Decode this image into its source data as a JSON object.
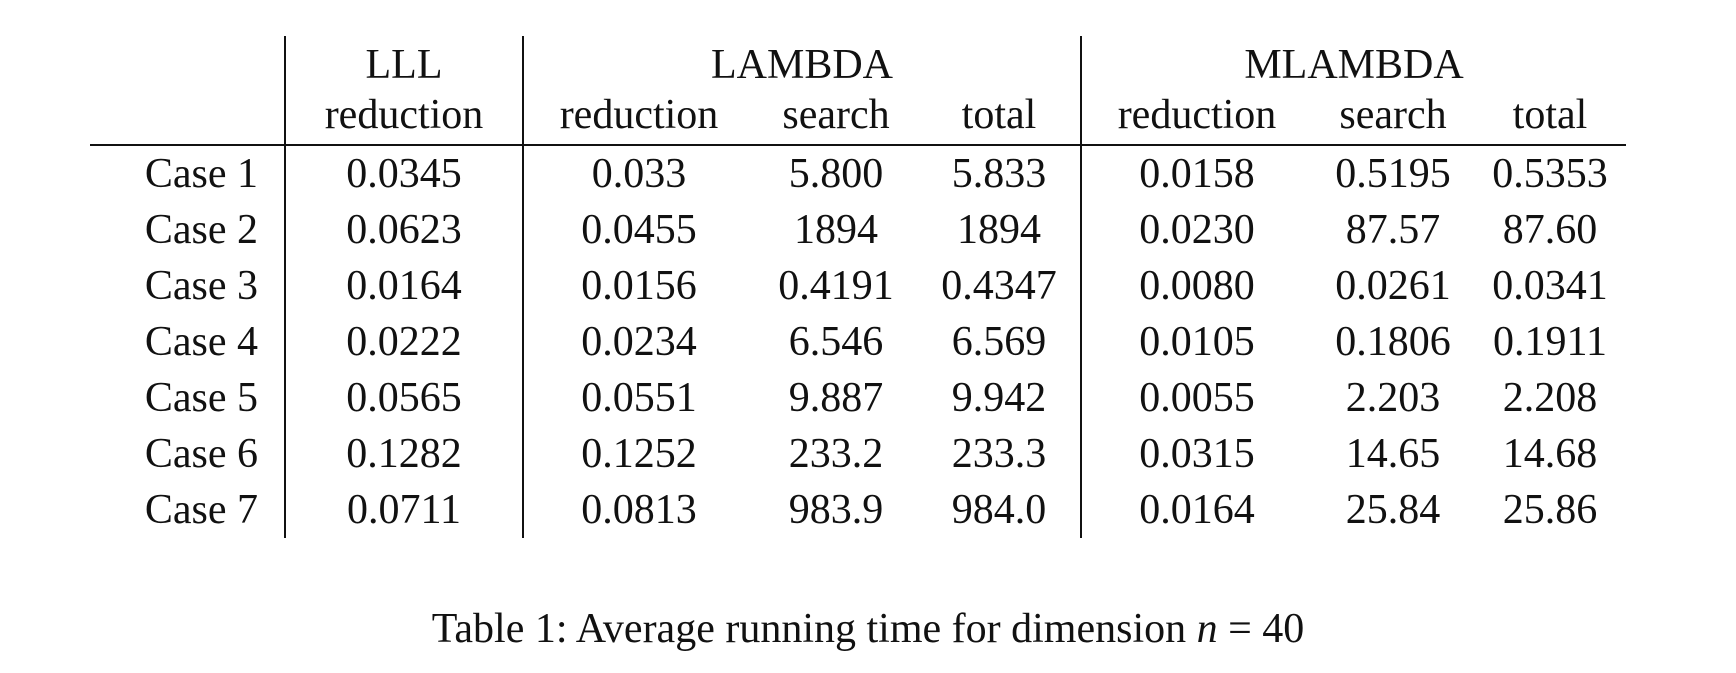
{
  "table": {
    "groups": {
      "lll": "LLL",
      "lambda": "LAMBDA",
      "mlambda": "MLAMBDA"
    },
    "subheaders": {
      "lll_reduction": "reduction",
      "lambda_reduction": "reduction",
      "lambda_search": "search",
      "lambda_total": "total",
      "mlambda_reduction": "reduction",
      "mlambda_search": "search",
      "mlambda_total": "total"
    },
    "rows": [
      [
        "Case 1",
        "0.0345",
        "0.033",
        "5.800",
        "5.833",
        "0.0158",
        "0.5195",
        "0.5353"
      ],
      [
        "Case 2",
        "0.0623",
        "0.0455",
        "1894",
        "1894",
        "0.0230",
        "87.57",
        "87.60"
      ],
      [
        "Case 3",
        "0.0164",
        "0.0156",
        "0.4191",
        "0.4347",
        "0.0080",
        "0.0261",
        "0.0341"
      ],
      [
        "Case 4",
        "0.0222",
        "0.0234",
        "6.546",
        "6.569",
        "0.0105",
        "0.1806",
        "0.1911"
      ],
      [
        "Case 5",
        "0.0565",
        "0.0551",
        "9.887",
        "9.942",
        "0.0055",
        "2.203",
        "2.208"
      ],
      [
        "Case 6",
        "0.1282",
        "0.1252",
        "233.2",
        "233.3",
        "0.0315",
        "14.65",
        "14.68"
      ],
      [
        "Case 7",
        "0.0711",
        "0.0813",
        "983.9",
        "984.0",
        "0.0164",
        "25.84",
        "25.86"
      ]
    ]
  },
  "caption": {
    "prefix": "Table 1: Average running time for dimension ",
    "variable": "n",
    "suffix": " = 40"
  }
}
